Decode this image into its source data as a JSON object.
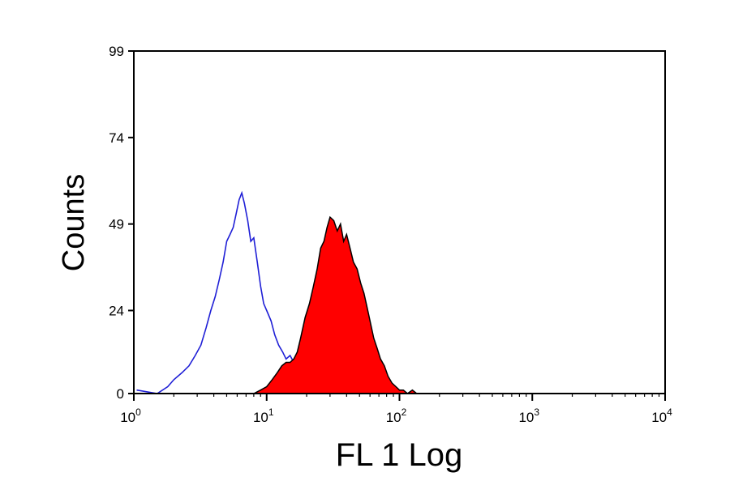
{
  "chart_data": {
    "type": "area",
    "title": "",
    "xlabel": "FL 1 Log",
    "ylabel": "Counts",
    "x_scale": "log",
    "xlim": [
      1,
      10000
    ],
    "ylim": [
      0,
      99
    ],
    "y_ticks": [
      0,
      24,
      49,
      74,
      99
    ],
    "x_ticks": [
      {
        "value": 1,
        "base": "10",
        "exp": "0"
      },
      {
        "value": 10,
        "base": "10",
        "exp": "1"
      },
      {
        "value": 100,
        "base": "10",
        "exp": "2"
      },
      {
        "value": 1000,
        "base": "10",
        "exp": "3"
      },
      {
        "value": 10000,
        "base": "10",
        "exp": "4"
      }
    ],
    "grid": false,
    "series": [
      {
        "style": "outline",
        "color": "#1f1fd6",
        "x": [
          1.05,
          1.5,
          1.8,
          2.0,
          2.3,
          2.6,
          2.9,
          3.2,
          3.5,
          3.8,
          4.1,
          4.4,
          4.7,
          5.0,
          5.3,
          5.6,
          5.9,
          6.2,
          6.5,
          6.8,
          7.2,
          7.6,
          8.0,
          8.5,
          9.0,
          9.5,
          10.0,
          10.8,
          11.5,
          12.3,
          13.2,
          14.0,
          15.0,
          16.0,
          17.0,
          18.5,
          20,
          22,
          24,
          27,
          30,
          34,
          38,
          42,
          47,
          52,
          58,
          65,
          72,
          80,
          90,
          100
        ],
        "y": [
          1,
          0,
          2,
          4,
          6,
          8,
          11,
          14,
          19,
          24,
          28,
          33,
          38,
          44,
          46,
          48,
          52,
          56,
          58,
          55,
          50,
          44,
          45,
          38,
          31,
          26,
          24,
          21,
          17,
          14,
          12,
          10,
          11,
          9,
          8,
          6,
          5,
          4,
          4,
          3,
          3,
          2,
          3,
          2,
          2,
          1,
          2,
          1,
          1,
          0,
          0,
          0
        ]
      },
      {
        "style": "filled",
        "color": "#ff0000",
        "x": [
          8.0,
          9.0,
          10.0,
          11.0,
          12.0,
          13.0,
          14.0,
          15.0,
          16.0,
          17.0,
          18.0,
          19.5,
          21,
          22.5,
          24,
          25.5,
          27,
          28.5,
          30,
          32,
          34,
          36,
          38,
          40,
          42.5,
          45,
          48,
          51,
          54,
          57,
          60,
          64,
          68,
          72,
          77,
          82,
          88,
          94,
          100,
          107,
          115,
          125,
          135
        ],
        "y": [
          0,
          1,
          2,
          4,
          6,
          8,
          9,
          9,
          10,
          12,
          16,
          22,
          26,
          31,
          36,
          42,
          44,
          48,
          51,
          50,
          47,
          49,
          44,
          46,
          42,
          38,
          36,
          32,
          29,
          25,
          21,
          16,
          13,
          10,
          8,
          5,
          3,
          2,
          1,
          1,
          0,
          1,
          0
        ]
      }
    ]
  }
}
